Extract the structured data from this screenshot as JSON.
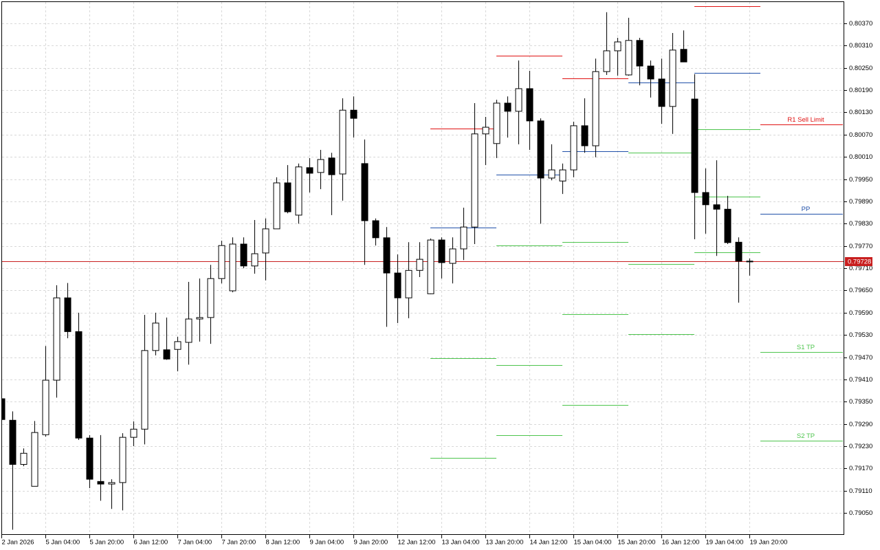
{
  "chart_data": {
    "type": "candlestick",
    "categories": [
      "2 Jan 2026",
      null,
      null,
      null,
      "5 Jan 04:00",
      null,
      null,
      null,
      "5 Jan 20:00",
      null,
      null,
      null,
      "6 Jan 12:00",
      null,
      null,
      null,
      "7 Jan 04:00",
      null,
      null,
      null,
      "7 Jan 20:00",
      null,
      null,
      null,
      "8 Jan 12:00",
      null,
      null,
      null,
      "9 Jan 04:00",
      null,
      null,
      null,
      "9 Jan 20:00",
      null,
      null,
      null,
      "12 Jan 12:00",
      null,
      null,
      null,
      "13 Jan 04:00",
      null,
      null,
      null,
      "13 Jan 20:00",
      null,
      null,
      null,
      "14 Jan 12:00",
      null,
      null,
      null,
      "15 Jan 04:00",
      null,
      null,
      null,
      "15 Jan 20:00",
      null,
      null,
      null,
      "16 Jan 12:00",
      null,
      null,
      null,
      "19 Jan 04:00",
      null,
      null,
      null,
      "19 Jan 20:00"
    ],
    "open": [
      0.79358,
      0.793,
      0.79181,
      0.79122,
      0.79261,
      0.79408,
      0.7963,
      0.79539,
      0.79252,
      0.79135,
      0.79128,
      0.79132,
      0.79254,
      0.79276,
      0.79488,
      0.7949,
      0.79491,
      0.7951,
      0.79573,
      0.79577,
      0.79682,
      0.79649,
      0.79775,
      0.79716,
      0.79751,
      0.79816,
      0.7994,
      0.79853,
      0.79981,
      0.79968,
      0.80007,
      0.79964,
      0.80136,
      0.79992,
      0.79838,
      0.79792,
      0.79697,
      0.7963,
      0.79704,
      0.79641,
      0.79786,
      0.79723,
      0.79762,
      0.79821,
      0.80072,
      0.80046,
      0.80155,
      0.80133,
      0.80194,
      0.80107,
      0.79953,
      0.79945,
      0.79975,
      0.80094,
      0.8004,
      0.8024,
      0.80296,
      0.80231,
      0.80324,
      0.80255,
      0.8022,
      0.80146,
      0.803,
      0.80166,
      0.79914,
      0.79881,
      0.79869,
      0.7978,
      0.79729
    ],
    "high": [
      0.79367,
      0.79324,
      0.79224,
      0.79298,
      0.795,
      0.79664,
      0.7967,
      0.7959,
      0.7926,
      0.7926,
      0.79141,
      0.79265,
      0.79297,
      0.79584,
      0.7959,
      0.79577,
      0.79525,
      0.79673,
      0.79682,
      0.79719,
      0.79784,
      0.79793,
      0.79793,
      0.7984,
      0.79844,
      0.79955,
      0.79988,
      0.79992,
      0.80007,
      0.80029,
      0.80021,
      0.80168,
      0.80173,
      0.80057,
      0.79844,
      0.79821,
      0.79747,
      0.7978,
      0.7978,
      0.7979,
      0.79793,
      0.79793,
      0.79873,
      0.80155,
      0.80118,
      0.80164,
      0.80173,
      0.8027,
      0.80242,
      0.80114,
      0.80044,
      0.79992,
      0.80105,
      0.80168,
      0.80275,
      0.804,
      0.80331,
      0.80385,
      0.80331,
      0.8027,
      0.80275,
      0.80344,
      0.80351,
      0.80233,
      0.79979,
      0.80001,
      0.79905,
      0.79793,
      0.79736
    ],
    "low": [
      0.79298,
      0.79005,
      0.79176,
      0.79122,
      0.79256,
      0.79361,
      0.79521,
      0.79247,
      0.79117,
      0.79083,
      0.79061,
      0.79057,
      0.7923,
      0.79235,
      0.79475,
      0.79463,
      0.79432,
      0.7945,
      0.79512,
      0.79506,
      0.79669,
      0.79645,
      0.7971,
      0.79695,
      0.79677,
      0.79816,
      0.79858,
      0.7983,
      0.79914,
      0.79923,
      0.79853,
      0.79892,
      0.80062,
      0.79719,
      0.79771,
      0.79552,
      0.79562,
      0.79575,
      0.79686,
      0.7964,
      0.79682,
      0.79669,
      0.79732,
      0.79775,
      0.79988,
      0.80007,
      0.80062,
      0.80044,
      0.80029,
      0.7983,
      0.79947,
      0.7991,
      0.79955,
      0.80021,
      0.80009,
      0.80231,
      0.80229,
      0.80229,
      0.80203,
      0.8017,
      0.80099,
      0.80072,
      0.80266,
      0.79788,
      0.79803,
      0.79743,
      0.79775,
      0.79617,
      0.7969
    ],
    "close": [
      0.79302,
      0.79181,
      0.79211,
      0.79267,
      0.79408,
      0.7963,
      0.79539,
      0.79252,
      0.79141,
      0.79128,
      0.79132,
      0.79254,
      0.79276,
      0.79488,
      0.79562,
      0.79465,
      0.79512,
      0.79573,
      0.79577,
      0.79682,
      0.79771,
      0.79775,
      0.79716,
      0.79749,
      0.79816,
      0.7994,
      0.79862,
      0.79983,
      0.79966,
      0.80003,
      0.79962,
      0.80136,
      0.80114,
      0.79838,
      0.79792,
      0.79697,
      0.7963,
      0.79704,
      0.79734,
      0.79786,
      0.79725,
      0.79762,
      0.79821,
      0.80072,
      0.8009,
      0.80155,
      0.80133,
      0.80194,
      0.80107,
      0.79953,
      0.79975,
      0.79975,
      0.80094,
      0.8004,
      0.8024,
      0.80296,
      0.8032,
      0.80324,
      0.80255,
      0.8022,
      0.80146,
      0.80298,
      0.80266,
      0.79914,
      0.79881,
      0.79869,
      0.79779,
      0.79729,
      0.79727
    ],
    "up_color": "#ffffff",
    "down_color": "#000000",
    "xlim": [
      -0.125,
      76.625
    ],
    "ylim": [
      0.78991,
      0.80433
    ],
    "yticks": [
      {
        "value": 0.8037,
        "label": "0.80370"
      },
      {
        "value": 0.8031,
        "label": "0.80310"
      },
      {
        "value": 0.8025,
        "label": "0.80250"
      },
      {
        "value": 0.8019,
        "label": "0.80190"
      },
      {
        "value": 0.8013,
        "label": "0.80130"
      },
      {
        "value": 0.8007,
        "label": "0.80070"
      },
      {
        "value": 0.8001,
        "label": "0.80010"
      },
      {
        "value": 0.7995,
        "label": "0.79950"
      },
      {
        "value": 0.7989,
        "label": "0.79890"
      },
      {
        "value": 0.7983,
        "label": "0.79830"
      },
      {
        "value": 0.7977,
        "label": "0.79770"
      },
      {
        "value": 0.7971,
        "label": "0.79710"
      },
      {
        "value": 0.7965,
        "label": "0.79650"
      },
      {
        "value": 0.7959,
        "label": "0.79590"
      },
      {
        "value": 0.7953,
        "label": "0.79530"
      },
      {
        "value": 0.7947,
        "label": "0.79470"
      },
      {
        "value": 0.7941,
        "label": "0.79410"
      },
      {
        "value": 0.7935,
        "label": "0.79350"
      },
      {
        "value": 0.7929,
        "label": "0.79290"
      },
      {
        "value": 0.7923,
        "label": "0.79230"
      },
      {
        "value": 0.7917,
        "label": "0.79170"
      },
      {
        "value": 0.7911,
        "label": "0.79110"
      },
      {
        "value": 0.7905,
        "label": "0.79050"
      }
    ],
    "grid": true,
    "last_price": {
      "value": 0.79728,
      "label": "0.79728",
      "color": "#c81e1e"
    },
    "levels": [
      {
        "start": 39,
        "end": 45,
        "value": 0.80086,
        "color": "#e01010"
      },
      {
        "start": 39,
        "end": 45,
        "value": 0.79819,
        "color": "#1f4fa8"
      },
      {
        "start": 39,
        "end": 45,
        "value": 0.79467,
        "color": "#4cc44c"
      },
      {
        "start": 39,
        "end": 45,
        "value": 0.79198,
        "color": "#4cc44c"
      },
      {
        "start": 45,
        "end": 51,
        "value": 0.80283,
        "color": "#e01010"
      },
      {
        "start": 45,
        "end": 51,
        "value": 0.79962,
        "color": "#1f4fa8"
      },
      {
        "start": 45,
        "end": 51,
        "value": 0.79771,
        "color": "#4cc44c"
      },
      {
        "start": 45,
        "end": 51,
        "value": 0.79449,
        "color": "#4cc44c"
      },
      {
        "start": 45,
        "end": 51,
        "value": 0.79259,
        "color": "#4cc44c"
      },
      {
        "start": 51,
        "end": 57,
        "value": 0.80222,
        "color": "#e01010"
      },
      {
        "start": 51,
        "end": 57,
        "value": 0.80025,
        "color": "#1f4fa8"
      },
      {
        "start": 51,
        "end": 57,
        "value": 0.7978,
        "color": "#4cc44c"
      },
      {
        "start": 51,
        "end": 57,
        "value": 0.79586,
        "color": "#4cc44c"
      },
      {
        "start": 51,
        "end": 57,
        "value": 0.79341,
        "color": "#4cc44c"
      },
      {
        "start": 57,
        "end": 63,
        "value": 0.80211,
        "color": "#1f4fa8"
      },
      {
        "start": 57,
        "end": 63,
        "value": 0.80021,
        "color": "#4cc44c"
      },
      {
        "start": 57,
        "end": 63,
        "value": 0.79721,
        "color": "#4cc44c"
      },
      {
        "start": 57,
        "end": 63,
        "value": 0.79532,
        "color": "#4cc44c"
      },
      {
        "start": 63,
        "end": 69,
        "value": 0.80416,
        "color": "#e01010"
      },
      {
        "start": 63,
        "end": 69,
        "value": 0.80237,
        "color": "#1f4fa8"
      },
      {
        "start": 63,
        "end": 69,
        "value": 0.80084,
        "color": "#4cc44c"
      },
      {
        "start": 63,
        "end": 69,
        "value": 0.79903,
        "color": "#4cc44c"
      },
      {
        "start": 63,
        "end": 69,
        "value": 0.79753,
        "color": "#4cc44c"
      },
      {
        "start": 69,
        "end": 76.5,
        "value": 0.80097,
        "color": "#e01010",
        "label": "R1 Sell Limit"
      },
      {
        "start": 69,
        "end": 76.5,
        "value": 0.79856,
        "color": "#1f4fa8",
        "label": "PP"
      },
      {
        "start": 69,
        "end": 76.5,
        "value": 0.79484,
        "color": "#4cc44c",
        "label": "S1 TP"
      },
      {
        "start": 69,
        "end": 76.5,
        "value": 0.79245,
        "color": "#4cc44c",
        "label": "S2 TP"
      }
    ]
  }
}
